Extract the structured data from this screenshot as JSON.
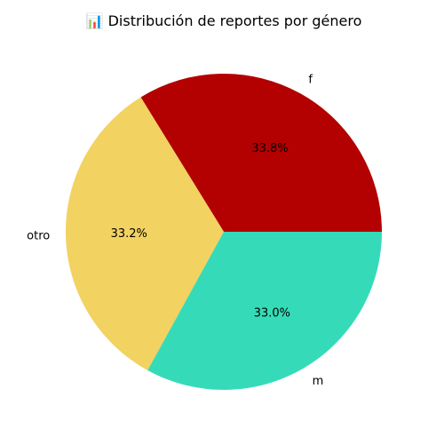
{
  "chart_data": {
    "type": "pie",
    "title": "📊 Distribución de reportes por género",
    "categories": [
      "f",
      "otro",
      "m"
    ],
    "values": [
      33.8,
      33.2,
      33.0
    ],
    "value_labels": [
      "33.8%",
      "33.2%",
      "33.0%"
    ],
    "colors": [
      "#b30000",
      "#f2d260",
      "#35dbb8"
    ],
    "start_angle_deg": 0,
    "direction": "counterclockwise",
    "legend": "none"
  }
}
